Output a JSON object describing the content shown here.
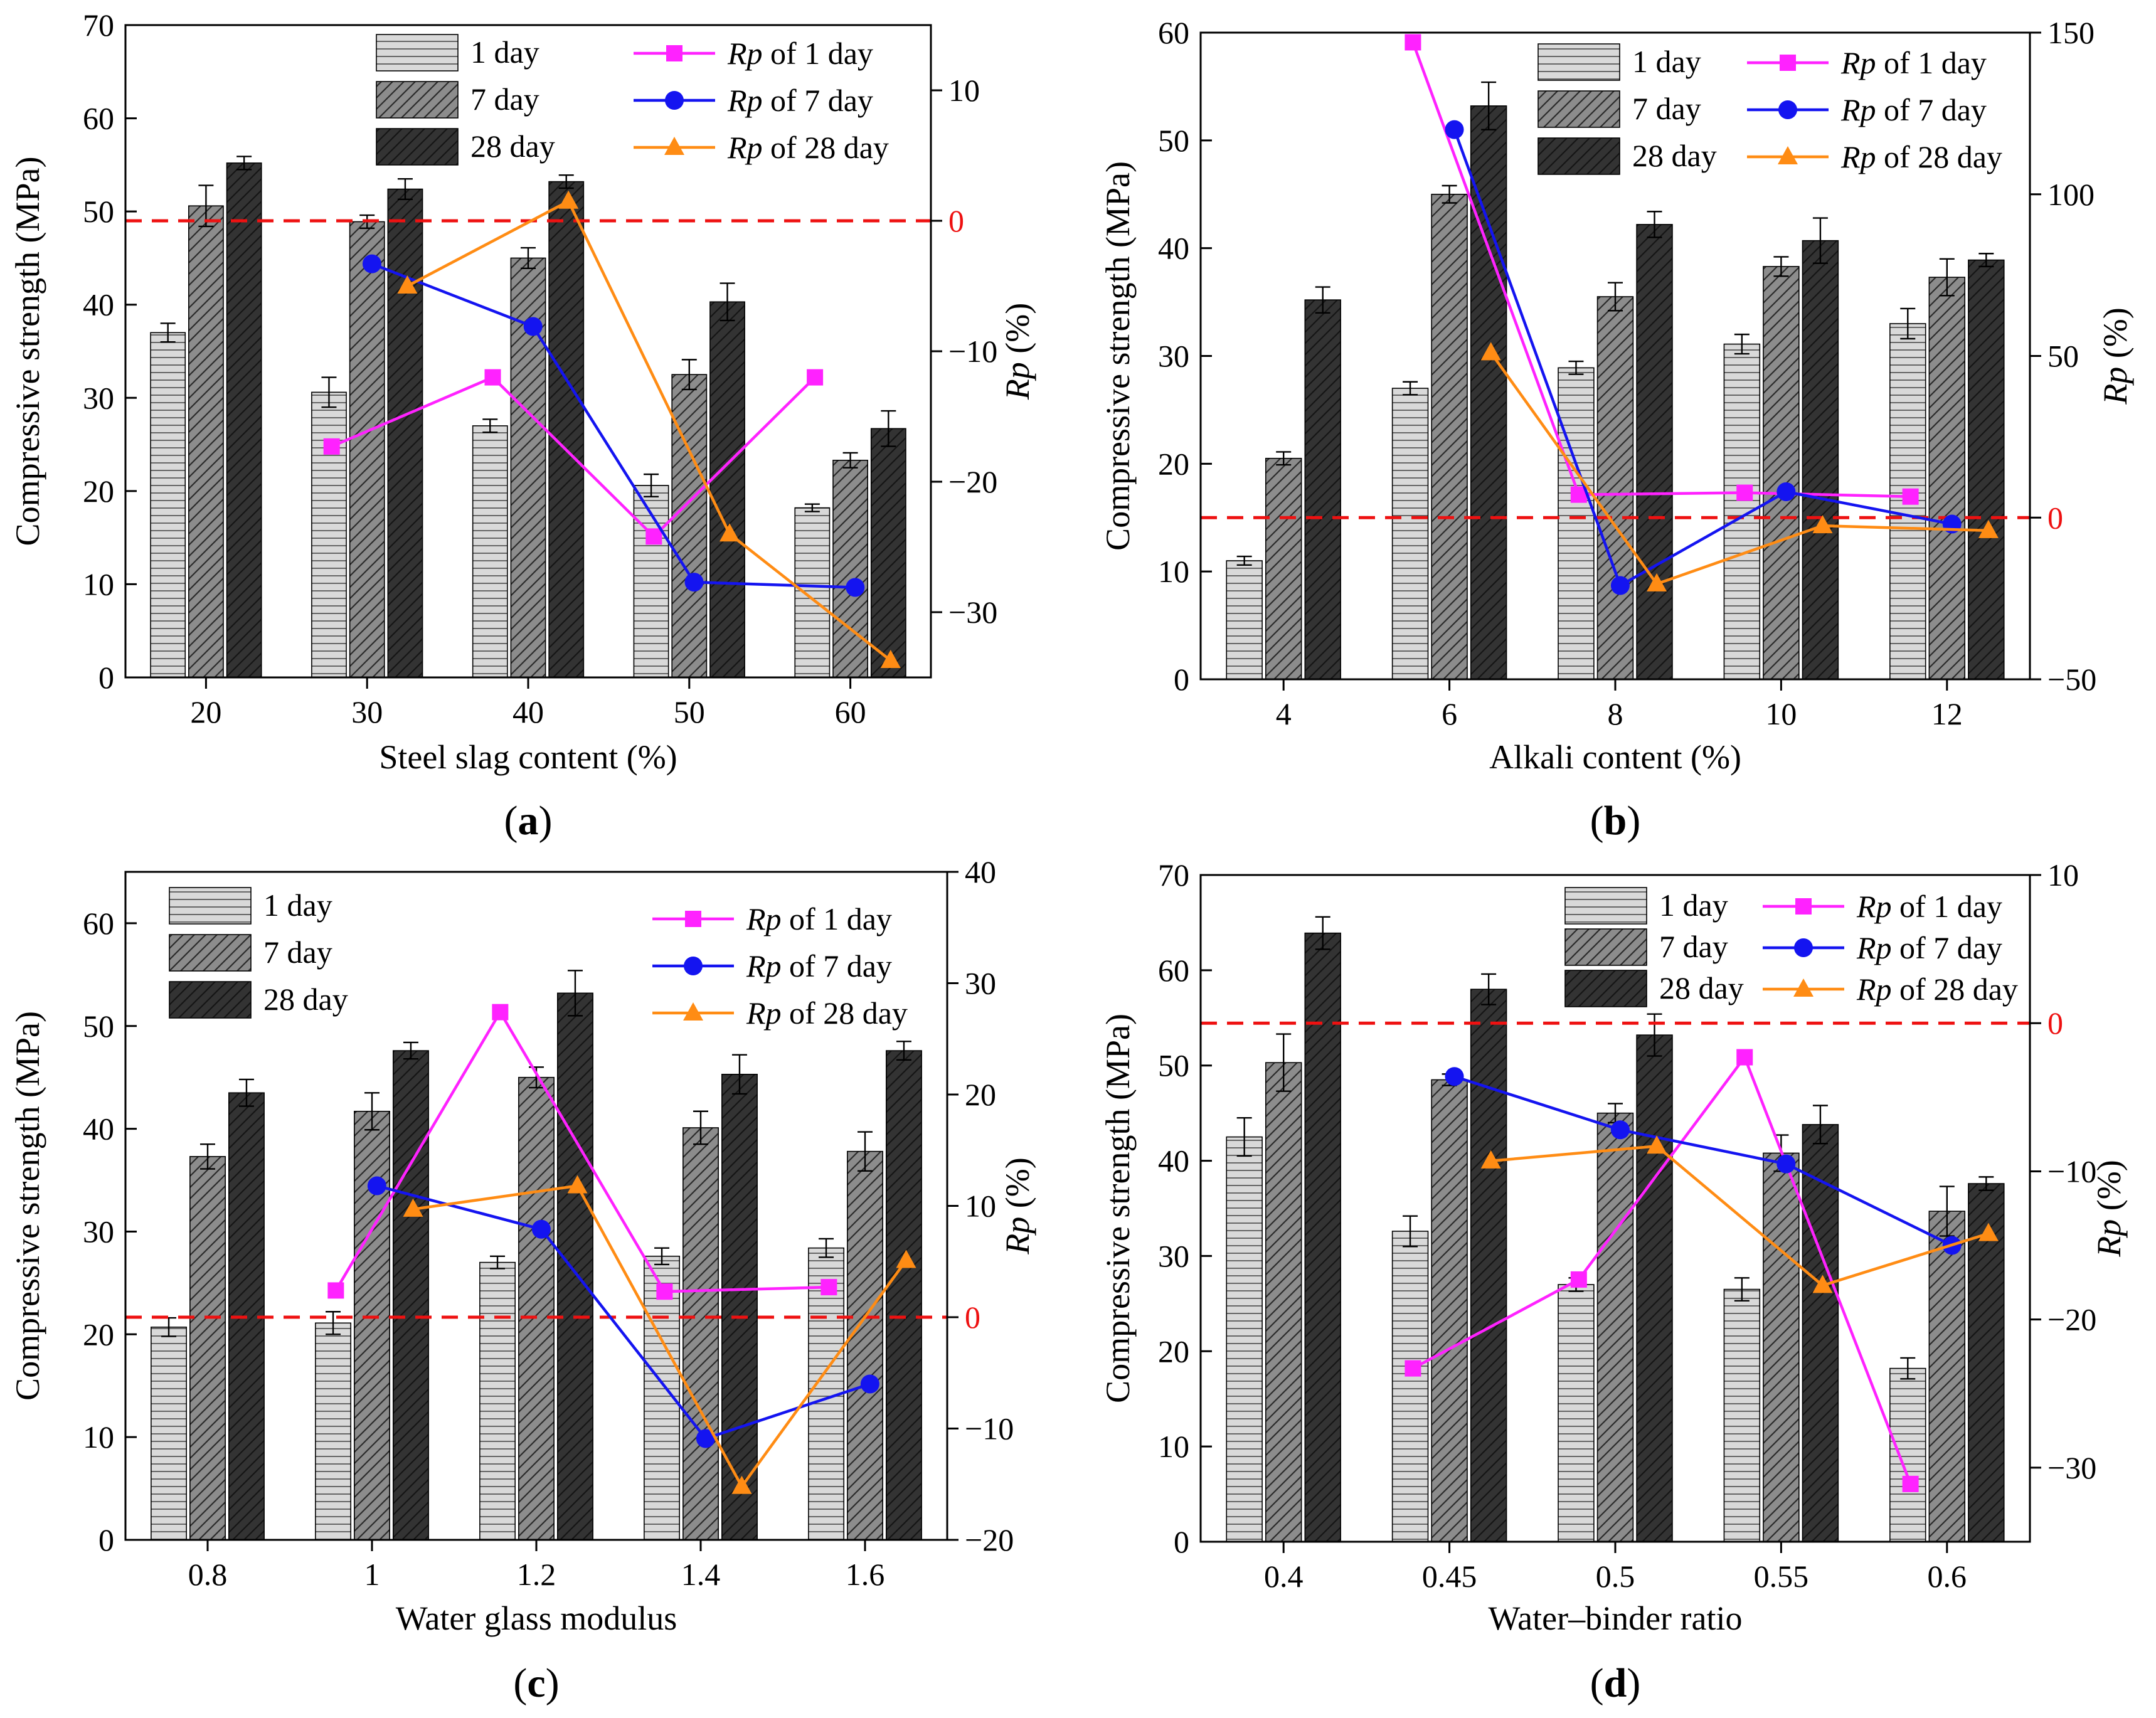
{
  "figure": {
    "colors": {
      "day1_fill": "#d9d9d9",
      "day7_fill": "#8c8c8c",
      "day28_fill": "#333333",
      "rp1": "#ff22ff",
      "rp7": "#1414f0",
      "rp28": "#ff8c14",
      "reference_line": "#ee1111"
    },
    "legend_bars": [
      "1 day",
      "7 day",
      "28 day"
    ],
    "rp_italic": "Rp",
    "left_axis_title": "Compressive strength (MPa)",
    "right_axis_title_suffix": " (%)"
  },
  "chart_data": [
    {
      "panel": "a",
      "panel_label": "a",
      "type": "bar",
      "xlabel": "Steel slag content (%)",
      "ylabel": "Compressive strength (MPa)",
      "y2label": "Rp (%)",
      "categories": [
        "20",
        "30",
        "40",
        "50",
        "60"
      ],
      "ylim": [
        0,
        70
      ],
      "yticks": [
        0,
        10,
        20,
        30,
        40,
        50,
        60,
        70
      ],
      "y2lim": [
        -35,
        15
      ],
      "y2ticks": [
        -30,
        -20,
        -10,
        0,
        10
      ],
      "y2ref": 0,
      "legend_rp": [
        "of 1 day",
        "of 7 day",
        "of 28 day"
      ],
      "series": [
        {
          "name": "1 day",
          "values": [
            37.0,
            30.6,
            27.0,
            20.6,
            18.2
          ],
          "errors": [
            1.0,
            1.6,
            0.7,
            1.2,
            0.4
          ]
        },
        {
          "name": "7 day",
          "values": [
            50.6,
            48.9,
            45.0,
            32.5,
            23.3
          ],
          "errors": [
            2.2,
            0.7,
            1.1,
            1.6,
            0.8
          ]
        },
        {
          "name": "28 day",
          "values": [
            55.2,
            52.4,
            53.2,
            40.3,
            26.7
          ],
          "errors": [
            0.7,
            1.1,
            0.7,
            2.0,
            1.9
          ]
        }
      ],
      "rp_series": [
        {
          "name": "Rp of 1 day",
          "points": [
            [
              1,
              -17.3
            ],
            [
              2,
              -12.0
            ],
            [
              3,
              -24.2
            ],
            [
              4,
              -12.0
            ]
          ]
        },
        {
          "name": "Rp of 7 day",
          "points": [
            [
              1,
              -3.3
            ],
            [
              2,
              -8.1
            ],
            [
              3,
              -27.7
            ],
            [
              4,
              -28.1
            ]
          ]
        },
        {
          "name": "Rp of 28 day",
          "points": [
            [
              1,
              -5.0
            ],
            [
              2,
              1.5
            ],
            [
              3,
              -24.0
            ],
            [
              4,
              -33.7
            ]
          ]
        }
      ]
    },
    {
      "panel": "b",
      "panel_label": "b",
      "type": "bar",
      "xlabel": "Alkali content (%)",
      "ylabel": "Compressive strength (MPa)",
      "y2label": "Rp (%)",
      "categories": [
        "4",
        "6",
        "8",
        "10",
        "12"
      ],
      "ylim": [
        0,
        60
      ],
      "yticks": [
        0,
        10,
        20,
        30,
        40,
        50,
        60
      ],
      "y2lim": [
        -50,
        150
      ],
      "y2ticks": [
        -50,
        0,
        50,
        100,
        150
      ],
      "y2ref": 0,
      "legend_rp": [
        "of 1 day",
        "of 7 day",
        "of 28 day"
      ],
      "series": [
        {
          "name": "1 day",
          "values": [
            11.0,
            27.0,
            28.9,
            31.1,
            33.0
          ],
          "errors": [
            0.4,
            0.6,
            0.6,
            0.9,
            1.4
          ]
        },
        {
          "name": "7 day",
          "values": [
            20.5,
            45.0,
            35.5,
            38.3,
            37.3
          ],
          "errors": [
            0.6,
            0.8,
            1.3,
            0.9,
            1.7
          ]
        },
        {
          "name": "28 day",
          "values": [
            35.2,
            53.2,
            42.2,
            40.7,
            38.9
          ],
          "errors": [
            1.2,
            2.2,
            1.2,
            2.1,
            0.6
          ]
        }
      ],
      "rp_series": [
        {
          "name": "Rp of 1 day",
          "points": [
            [
              1,
              147.0
            ],
            [
              2,
              7.1
            ],
            [
              3,
              7.7
            ],
            [
              4,
              6.5
            ]
          ]
        },
        {
          "name": "Rp of 7 day",
          "points": [
            [
              1,
              120.0
            ],
            [
              2,
              -21.0
            ],
            [
              3,
              8.0
            ],
            [
              4,
              -2.0
            ]
          ]
        },
        {
          "name": "Rp of 28 day",
          "points": [
            [
              1,
              51.0
            ],
            [
              2,
              -20.5
            ],
            [
              3,
              -2.5
            ],
            [
              4,
              -4.0
            ]
          ]
        }
      ]
    },
    {
      "panel": "c",
      "panel_label": "c",
      "type": "bar",
      "xlabel": "Water glass modulus",
      "ylabel": "Compressive strength (MPa)",
      "y2label": "Rp (%)",
      "categories": [
        "0.8",
        "1",
        "1.2",
        "1.4",
        "1.6"
      ],
      "ylim": [
        0,
        65
      ],
      "yticks": [
        0,
        10,
        20,
        30,
        40,
        50,
        60
      ],
      "y2lim": [
        -20,
        40
      ],
      "y2ticks": [
        -20,
        -10,
        0,
        10,
        20,
        30,
        40
      ],
      "y2ref": 0,
      "legend_rp": [
        "of 1 day",
        "of  7 day",
        "of  28 day"
      ],
      "series": [
        {
          "name": "1 day",
          "values": [
            20.7,
            21.1,
            27.0,
            27.6,
            28.4
          ],
          "errors": [
            0.9,
            1.1,
            0.6,
            0.8,
            0.9
          ]
        },
        {
          "name": "7 day",
          "values": [
            37.3,
            41.7,
            45.0,
            40.1,
            37.8
          ],
          "errors": [
            1.2,
            1.8,
            1.0,
            1.6,
            1.9
          ]
        },
        {
          "name": "28 day",
          "values": [
            43.5,
            47.6,
            53.2,
            45.3,
            47.6
          ],
          "errors": [
            1.3,
            0.8,
            2.2,
            1.9,
            0.9
          ]
        }
      ],
      "rp_series": [
        {
          "name": "Rp of 1 day",
          "points": [
            [
              1,
              2.4
            ],
            [
              2,
              27.4
            ],
            [
              3,
              2.3
            ],
            [
              4,
              2.7
            ]
          ]
        },
        {
          "name": "Rp of 7 day",
          "points": [
            [
              1,
              11.8
            ],
            [
              2,
              7.9
            ],
            [
              3,
              -10.9
            ],
            [
              4,
              -6.0
            ]
          ]
        },
        {
          "name": "Rp of 28 day",
          "points": [
            [
              1,
              9.7
            ],
            [
              2,
              11.8
            ],
            [
              3,
              -15.2
            ],
            [
              4,
              5.1
            ]
          ]
        }
      ]
    },
    {
      "panel": "d",
      "panel_label": "d",
      "type": "bar",
      "xlabel": "Water–binder ratio",
      "ylabel": "Compressive strength (MPa)",
      "y2label": "Rp (%)",
      "categories": [
        "0.4",
        "0.45",
        "0.5",
        "0.55",
        "0.6"
      ],
      "ylim": [
        0,
        70
      ],
      "yticks": [
        0,
        10,
        20,
        30,
        40,
        50,
        60,
        70
      ],
      "y2lim": [
        -35,
        10
      ],
      "y2ticks": [
        -30,
        -20,
        -10,
        0,
        10
      ],
      "y2ref": 0,
      "legend_rp": [
        "of 1 day",
        "of 7 day",
        "of 28 day"
      ],
      "series": [
        {
          "name": "1 day",
          "values": [
            42.5,
            32.6,
            27.0,
            26.5,
            18.2
          ],
          "errors": [
            2.0,
            1.6,
            0.7,
            1.2,
            1.1
          ]
        },
        {
          "name": "7 day",
          "values": [
            50.3,
            48.5,
            45.0,
            40.8,
            34.7
          ],
          "errors": [
            3.0,
            0.6,
            1.0,
            1.9,
            2.6
          ]
        },
        {
          "name": "28 day",
          "values": [
            63.9,
            58.0,
            53.2,
            43.8,
            37.6
          ],
          "errors": [
            1.7,
            1.6,
            2.2,
            2.0,
            0.7
          ]
        }
      ],
      "rp_series": [
        {
          "name": "Rp of 1 day",
          "points": [
            [
              1,
              -23.3
            ],
            [
              2,
              -17.3
            ],
            [
              3,
              -2.3
            ],
            [
              4,
              -31.1
            ]
          ]
        },
        {
          "name": "Rp of 7 day",
          "points": [
            [
              1,
              -3.6
            ],
            [
              2,
              -7.2
            ],
            [
              3,
              -9.5
            ],
            [
              4,
              -15.0
            ]
          ]
        },
        {
          "name": "Rp of 28 day",
          "points": [
            [
              1,
              -9.3
            ],
            [
              2,
              -8.3
            ],
            [
              3,
              -17.7
            ],
            [
              4,
              -14.2
            ]
          ]
        }
      ]
    }
  ]
}
